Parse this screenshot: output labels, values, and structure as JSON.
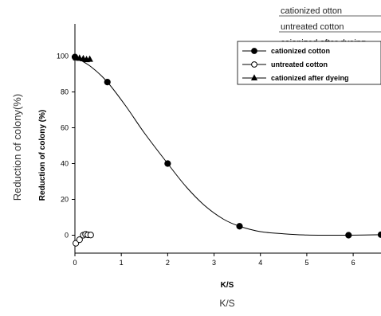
{
  "annotations": {
    "top_labels": [
      "cationized otton",
      "untreated cotton",
      "caionized after dyeing"
    ],
    "outer_ylabel": "Reduction of colony(%)",
    "outer_xlabel": "K/S"
  },
  "chart_data": {
    "type": "scatter",
    "xlabel": "K/S",
    "ylabel": "Reduction of colony (%)",
    "xlim": [
      0,
      6.6
    ],
    "ylim": [
      -10,
      118
    ],
    "x_ticks": [
      0,
      1,
      2,
      3,
      4,
      5,
      6
    ],
    "y_ticks": [
      0,
      20,
      40,
      60,
      80,
      100
    ],
    "legend_position": "top-right",
    "series": [
      {
        "name": "cationized cotton",
        "marker": "filled-circle",
        "color": "#000000",
        "points": [
          [
            0,
            99.5
          ],
          [
            0.7,
            85.5
          ],
          [
            2.0,
            40
          ],
          [
            3.55,
            5
          ],
          [
            5.9,
            0
          ],
          [
            6.6,
            0.3
          ]
        ],
        "fit_curve": [
          [
            0,
            99.5
          ],
          [
            0.35,
            94
          ],
          [
            0.7,
            85.5
          ],
          [
            1.1,
            72
          ],
          [
            1.5,
            57
          ],
          [
            2.0,
            40
          ],
          [
            2.4,
            27
          ],
          [
            2.8,
            16.5
          ],
          [
            3.2,
            9
          ],
          [
            3.55,
            5
          ],
          [
            4.0,
            2
          ],
          [
            4.5,
            0.8
          ],
          [
            5.0,
            0.1
          ],
          [
            5.5,
            0
          ],
          [
            5.9,
            0
          ],
          [
            6.6,
            0.3
          ]
        ]
      },
      {
        "name": "untreated cotton",
        "marker": "open-circle",
        "color": "#000000",
        "points": [
          [
            0.02,
            -4.5
          ],
          [
            0.1,
            -2.5
          ],
          [
            0.18,
            0
          ],
          [
            0.23,
            0.5
          ],
          [
            0.28,
            0.2
          ],
          [
            0.34,
            0.1
          ]
        ]
      },
      {
        "name": "cationized after dyeing",
        "marker": "filled-triangle",
        "color": "#000000",
        "points": [
          [
            0.03,
            99
          ],
          [
            0.1,
            98.8
          ],
          [
            0.18,
            98.5
          ],
          [
            0.25,
            98
          ],
          [
            0.32,
            98.2
          ]
        ]
      }
    ]
  }
}
